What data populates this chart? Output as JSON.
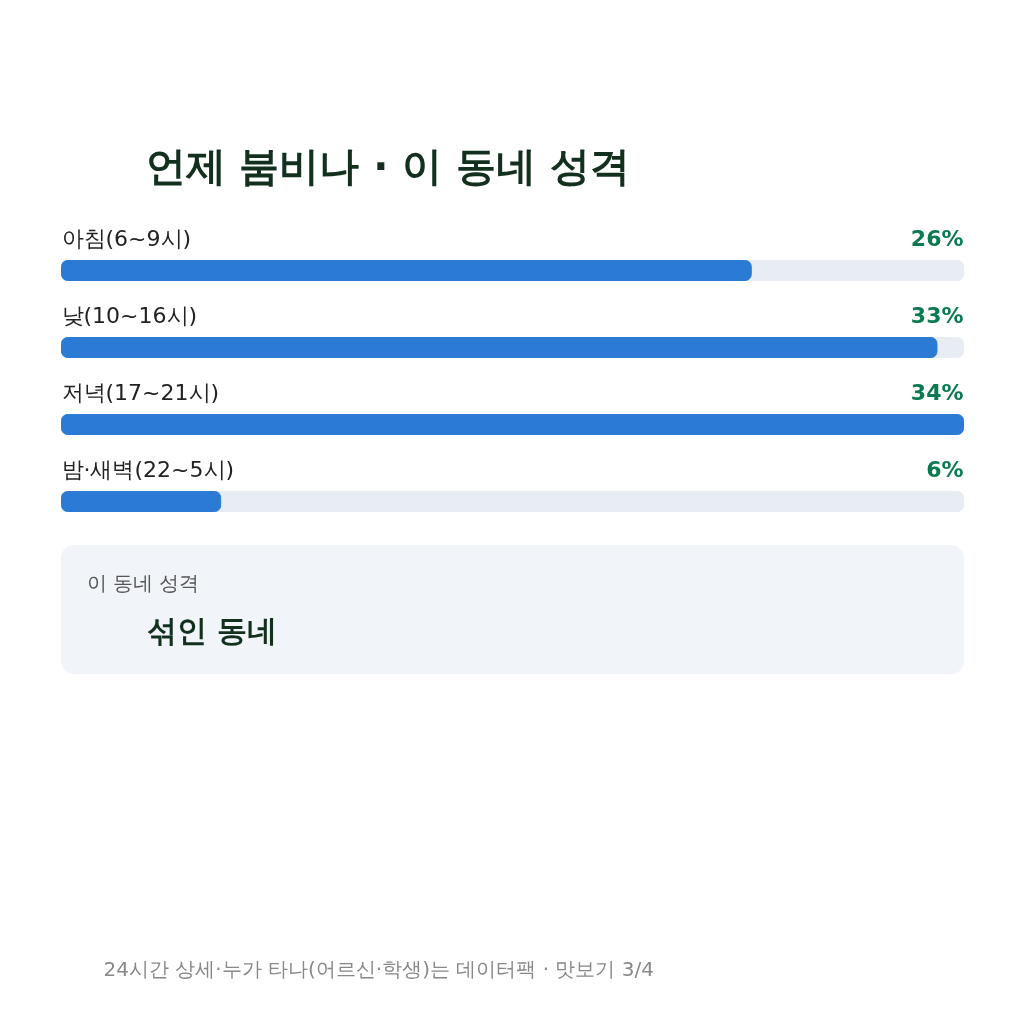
{
  "chart_data": {
    "type": "bar",
    "orientation": "horizontal",
    "title": "언제 붐비나 · 이 동네 성격",
    "categories": [
      "아침(6~9시)",
      "낮(10~16시)",
      "저녁(17~21시)",
      "밤·새벽(22~5시)"
    ],
    "values": [
      26,
      33,
      34,
      6
    ],
    "color": "#2b7bd4",
    "data_labels": true,
    "value_labels": [
      "26%",
      "33%",
      "34%",
      "6%"
    ],
    "grid": false,
    "tick_labels": false,
    "annotations": [
      "이 동네 성격",
      "섞인 동네",
      "24시간 상세·누가 타나(어르신·학생)는 데이터팩 · 맛보기 3/4"
    ]
  }
}
